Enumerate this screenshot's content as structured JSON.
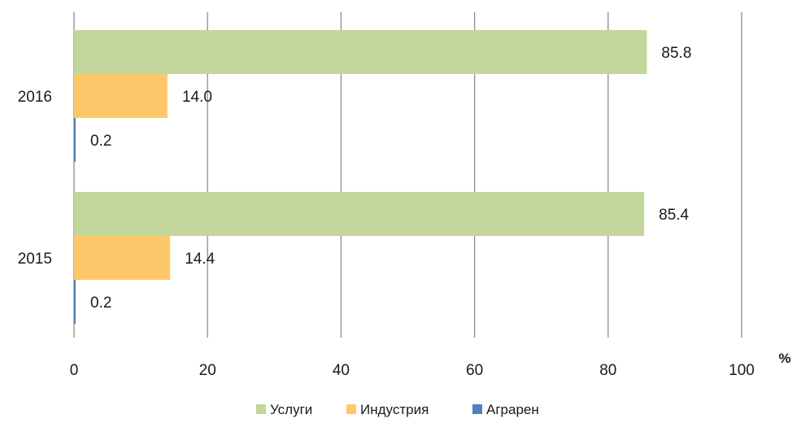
{
  "chart_data": {
    "type": "bar",
    "orientation": "horizontal",
    "categories": [
      "2016",
      "2015"
    ],
    "series": [
      {
        "name": "Услуги",
        "values": [
          85.8,
          85.4
        ],
        "color": "#c3d69b",
        "labels": [
          "85.8",
          "85.4"
        ]
      },
      {
        "name": "Индустрия",
        "values": [
          14.0,
          14.4
        ],
        "color": "#fdc86a",
        "labels": [
          "14.0",
          "14.4"
        ]
      },
      {
        "name": "Аграрен",
        "values": [
          0.2,
          0.2
        ],
        "color": "#4f81bd",
        "labels": [
          "0.2",
          "0.2"
        ]
      }
    ],
    "x_ticks": [
      "0",
      "20",
      "40",
      "60",
      "80",
      "100"
    ],
    "xlim": [
      0,
      100
    ],
    "unit_label": "%",
    "grid": true,
    "legend_position": "bottom"
  }
}
